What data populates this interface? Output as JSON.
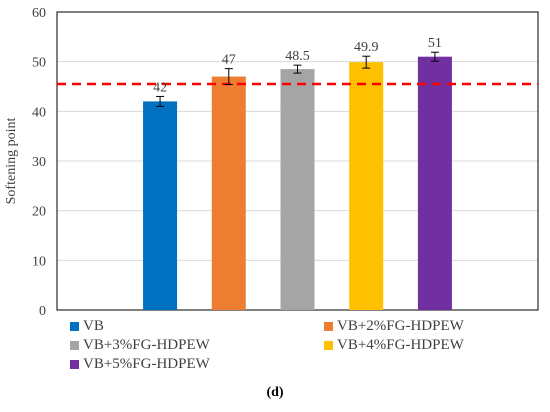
{
  "caption": "(d)",
  "chart_data": {
    "type": "bar",
    "ylabel": "Softening point",
    "xlabel": "",
    "ylim": [
      0,
      60
    ],
    "yticks": [
      0,
      10,
      20,
      30,
      40,
      50,
      60
    ],
    "grid": "horizontal",
    "legend_placement": "bottom",
    "reference_line": {
      "value": 45.5,
      "style": "dashed",
      "color": "#ff0000"
    },
    "series": [
      {
        "name": "VB",
        "value": 42,
        "label": "42",
        "error": 1.0,
        "color": "#0070c0"
      },
      {
        "name": "VB+2%FG-HDPEW",
        "value": 47,
        "label": "47",
        "error": 1.6,
        "color": "#ed7d31"
      },
      {
        "name": "VB+3%FG-HDPEW",
        "value": 48.5,
        "label": "48.5",
        "error": 0.8,
        "color": "#a5a5a5"
      },
      {
        "name": "VB+4%FG-HDPEW",
        "value": 49.9,
        "label": "49.9",
        "error": 1.2,
        "color": "#ffc000"
      },
      {
        "name": "VB+5%FG-HDPEW",
        "value": 51,
        "label": "51",
        "error": 0.9,
        "color": "#7030a0"
      }
    ]
  }
}
